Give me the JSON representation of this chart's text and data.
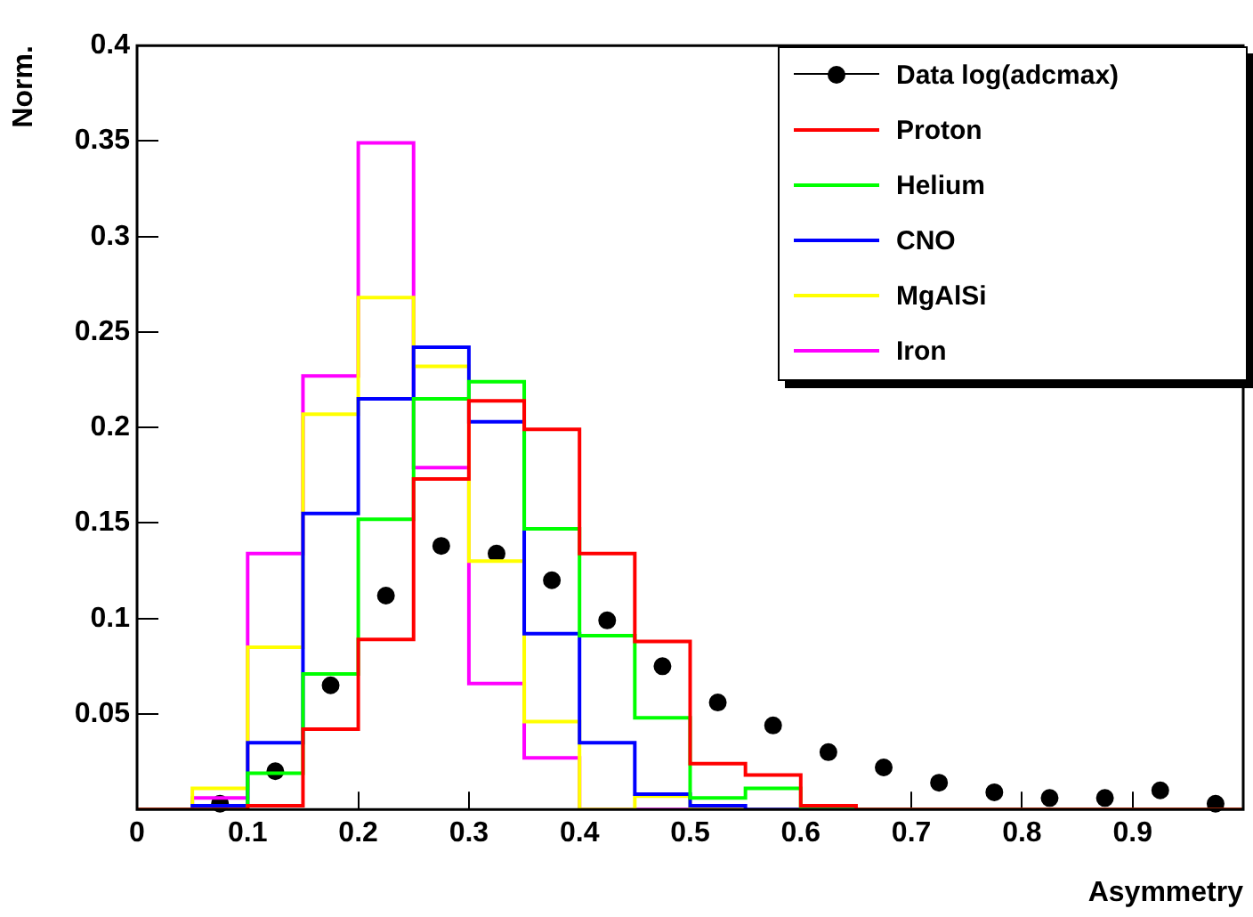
{
  "chart_data": {
    "type": "histogram",
    "xlabel": "Asymmetry",
    "ylabel": "Norm.",
    "bins": [
      0,
      0.05,
      0.1,
      0.15,
      0.2,
      0.25,
      0.3,
      0.35,
      0.4,
      0.45,
      0.5,
      0.55,
      0.6,
      0.65,
      0.7,
      0.75,
      0.8,
      0.85,
      0.9,
      0.95,
      1.0
    ],
    "series": [
      {
        "name": "Data log(adcmax)",
        "type": "scatter",
        "color": "#000000",
        "x": [
          0.075,
          0.125,
          0.175,
          0.225,
          0.275,
          0.325,
          0.375,
          0.425,
          0.475,
          0.525,
          0.575,
          0.625,
          0.675,
          0.725,
          0.775,
          0.825,
          0.875,
          0.925,
          0.975
        ],
        "values": [
          0.003,
          0.02,
          0.065,
          0.112,
          0.138,
          0.134,
          0.12,
          0.099,
          0.075,
          0.056,
          0.044,
          0.03,
          0.022,
          0.014,
          0.009,
          0.006,
          0.006,
          0.01,
          0.003
        ]
      },
      {
        "name": "Proton",
        "color": "#ff0000",
        "values": [
          0,
          0,
          0.002,
          0.042,
          0.089,
          0.173,
          0.214,
          0.199,
          0.134,
          0.088,
          0.024,
          0.018,
          0.002,
          0,
          0,
          0,
          0,
          0,
          0,
          0
        ]
      },
      {
        "name": "Helium",
        "color": "#00ff00",
        "values": [
          0,
          0,
          0.019,
          0.071,
          0.152,
          0.215,
          0.224,
          0.147,
          0.091,
          0.048,
          0.006,
          0.011,
          0,
          0,
          0,
          0,
          0,
          0,
          0,
          0
        ]
      },
      {
        "name": "CNO",
        "color": "#0000ff",
        "values": [
          0,
          0.002,
          0.035,
          0.155,
          0.215,
          0.242,
          0.203,
          0.092,
          0.035,
          0.008,
          0.002,
          0,
          0,
          0,
          0,
          0,
          0,
          0,
          0,
          0
        ]
      },
      {
        "name": "MgAlSi",
        "color": "#ffff00",
        "values": [
          0,
          0.011,
          0.085,
          0.207,
          0.268,
          0.232,
          0.13,
          0.046,
          0,
          0.007,
          0,
          0,
          0,
          0,
          0,
          0,
          0,
          0,
          0,
          0
        ]
      },
      {
        "name": "Iron",
        "color": "#ff00ff",
        "values": [
          0,
          0.006,
          0.134,
          0.227,
          0.349,
          0.179,
          0.066,
          0.027,
          0,
          0,
          0,
          0,
          0,
          0,
          0,
          0,
          0,
          0,
          0,
          0
        ]
      }
    ],
    "xlim": [
      0,
      1
    ],
    "ylim": [
      0,
      0.4
    ],
    "xticks": [
      0,
      0.1,
      0.2,
      0.3,
      0.4,
      0.5,
      0.6,
      0.7,
      0.8,
      0.9
    ],
    "yticks": [
      0.05,
      0.1,
      0.15,
      0.2,
      0.25,
      0.3,
      0.35,
      0.4
    ],
    "grid": false,
    "legend": "top right",
    "marker": "circle"
  }
}
